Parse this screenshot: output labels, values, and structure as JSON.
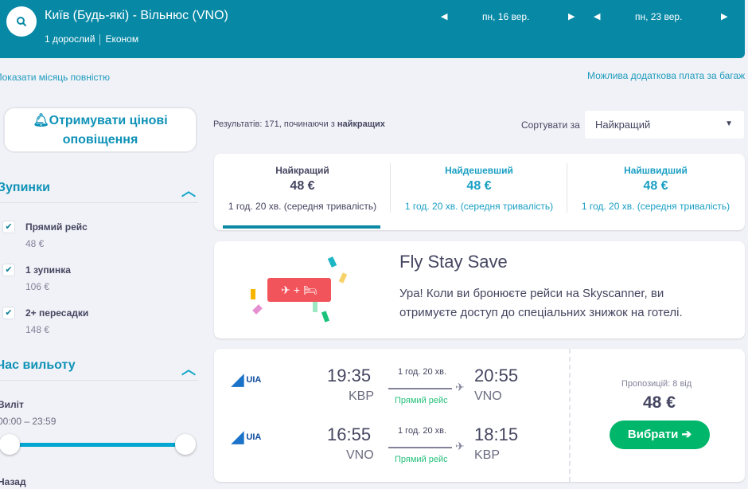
{
  "header": {
    "route": "Київ (Будь-які) - Вільнюс (VNO)",
    "passengers": "1 дорослий",
    "cabin": "Економ",
    "depart_date": "пн, 16 вер.",
    "return_date": "пн, 23 вер.",
    "bg_color": "#0789a6"
  },
  "links": {
    "show_month": "Показати місяць повністю",
    "baggage": "Можлива додаткова плата за багаж"
  },
  "sidebar": {
    "alert_line1": "Отримувати цінові",
    "alert_line2": "оповіщення",
    "stops": {
      "title": "Зупинки",
      "options": [
        {
          "label": "Прямий рейс",
          "price": "48 €",
          "checked": true
        },
        {
          "label": "1 зупинка",
          "price": "106 €",
          "checked": true
        },
        {
          "label": "2+ пересадки",
          "price": "148 €",
          "checked": true
        }
      ]
    },
    "time": {
      "title": "Час вильоту",
      "depart_label": "Виліт",
      "depart_range": "00:00 – 23:59",
      "return_label": "Назад",
      "slider_range": [
        "00:00",
        "23:59"
      ]
    }
  },
  "results": {
    "summary_prefix": "Результатів: 171, починаючи з ",
    "summary_bold": "найкращих",
    "sort_label": "Сортувати за",
    "sort_value": "Найкращий"
  },
  "tabs": [
    {
      "title": "Найкращий",
      "price": "48 €",
      "duration": "1 год. 20 хв. (середня тривалість)",
      "active": true
    },
    {
      "title": "Найдешевший",
      "price": "48 €",
      "duration": "1 год. 20 хв. (середня тривалість)"
    },
    {
      "title": "Найшвидший",
      "price": "48 €",
      "duration": "1 год. 20 хв. (середня тривалість)"
    }
  ],
  "promo": {
    "title": "Fly Stay Save",
    "text_line1": "Ура! Коли ви бронюєте рейси на Skyscanner, ви",
    "text_line2": "отримуєте доступ до спеціальних знижок на готелі."
  },
  "flight": {
    "legs": [
      {
        "airline": "UIA",
        "dep_time": "19:35",
        "dep_code": "KBP",
        "duration": "1 год. 20 хв.",
        "stops": "Прямий рейс",
        "arr_time": "20:55",
        "arr_code": "VNO"
      },
      {
        "airline": "UIA",
        "dep_time": "16:55",
        "dep_code": "VNO",
        "duration": "1 год. 20 хв.",
        "stops": "Прямий рейс",
        "arr_time": "18:15",
        "arr_code": "KBP"
      }
    ],
    "offers": "Пропозицій: 8 від",
    "price": "48 €",
    "select_label": "Вибрати ➔"
  }
}
